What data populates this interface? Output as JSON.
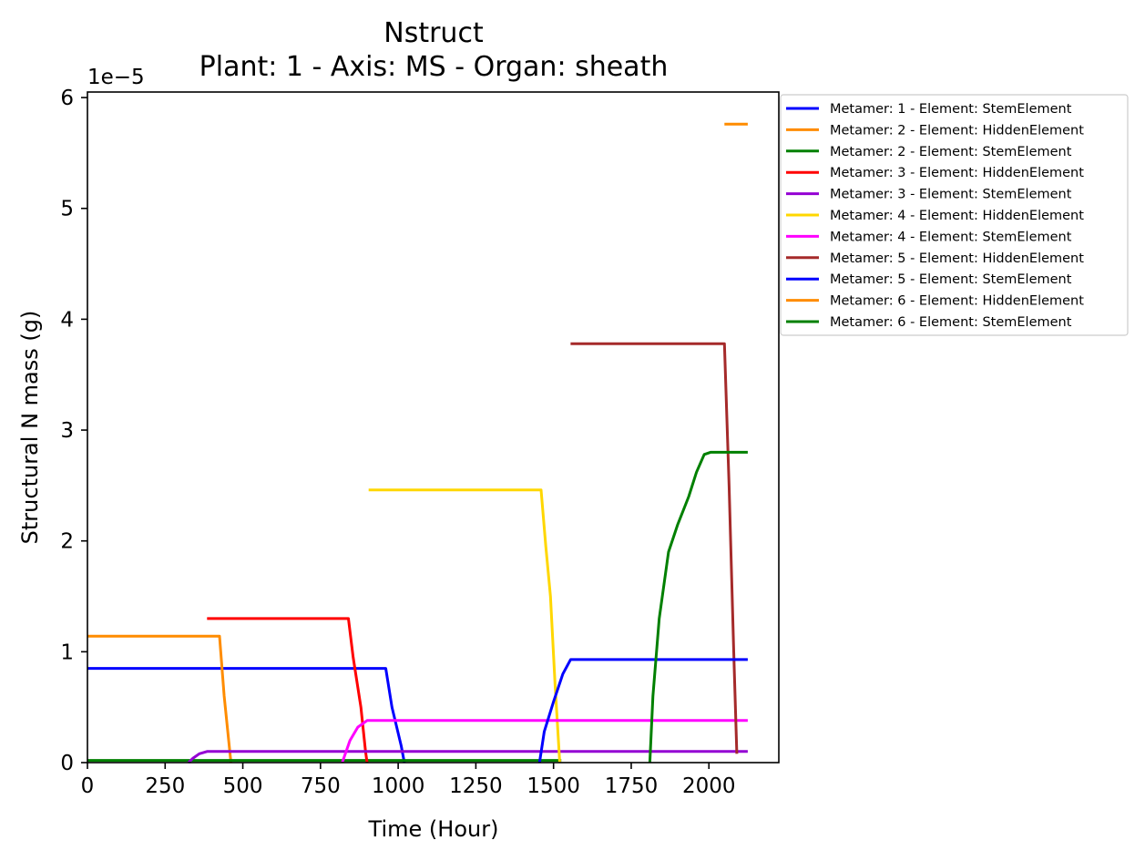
{
  "chart_data": {
    "type": "line",
    "title": "Nstruct",
    "subtitle": "Plant: 1 - Axis: MS - Organ: sheath",
    "xlabel": "Time (Hour)",
    "ylabel": "Structural N mass (g)",
    "y_offset_label": "1e−5",
    "xlim": [
      0,
      2225
    ],
    "ylim": [
      0,
      6.05
    ],
    "x_ticks": [
      0,
      250,
      500,
      750,
      1000,
      1250,
      1500,
      1750,
      2000
    ],
    "y_ticks": [
      0,
      1,
      2,
      3,
      4,
      5,
      6
    ],
    "grid": false,
    "legend_position": "outside top-right",
    "series": [
      {
        "name": "Metamer: 1 - Element: StemElement",
        "color": "#0000ff",
        "x": [
          0,
          960,
          980,
          1010,
          1020
        ],
        "y": [
          0.85,
          0.85,
          0.5,
          0.15,
          0
        ]
      },
      {
        "name": "Metamer: 2 - Element: HiddenElement",
        "color": "#ff8c00",
        "x": [
          0,
          425,
          440,
          460,
          462
        ],
        "y": [
          1.14,
          1.14,
          0.6,
          0.05,
          0
        ]
      },
      {
        "name": "Metamer: 2 - Element: StemElement",
        "color": "#008000",
        "x": [
          0,
          1525
        ],
        "y": [
          0.02,
          0.02
        ]
      },
      {
        "name": "Metamer: 3 - Element: HiddenElement",
        "color": "#ff0000",
        "x": [
          385,
          840,
          855,
          880,
          895,
          900
        ],
        "y": [
          1.3,
          1.3,
          0.95,
          0.5,
          0.1,
          0
        ]
      },
      {
        "name": "Metamer: 3 - Element: StemElement",
        "color": "#9400d3",
        "x": [
          325,
          340,
          360,
          385,
          2125
        ],
        "y": [
          0,
          0.04,
          0.08,
          0.1,
          0.1
        ]
      },
      {
        "name": "Metamer: 4 - Element: HiddenElement",
        "color": "#ffd700",
        "x": [
          905,
          1460,
          1475,
          1490,
          1505,
          1520
        ],
        "y": [
          2.46,
          2.46,
          1.95,
          1.5,
          0.7,
          0
        ]
      },
      {
        "name": "Metamer: 4 - Element: StemElement",
        "color": "#ff00ff",
        "x": [
          820,
          845,
          870,
          900,
          2125
        ],
        "y": [
          0,
          0.2,
          0.32,
          0.38,
          0.38
        ]
      },
      {
        "name": "Metamer: 5 - Element: HiddenElement",
        "color": "#a52a2a",
        "x": [
          1555,
          2050,
          2065,
          2080,
          2090
        ],
        "y": [
          3.78,
          3.78,
          2.5,
          1.0,
          0.08
        ]
      },
      {
        "name": "Metamer: 5 - Element: StemElement",
        "color": "#0000ff",
        "x": [
          1455,
          1470,
          1500,
          1530,
          1555,
          2125
        ],
        "y": [
          0,
          0.28,
          0.55,
          0.8,
          0.93,
          0.93
        ]
      },
      {
        "name": "Metamer: 6 - Element: HiddenElement",
        "color": "#ff8c00",
        "x": [
          2050,
          2125
        ],
        "y": [
          5.76,
          5.76
        ]
      },
      {
        "name": "Metamer: 6 - Element: StemElement",
        "color": "#008000",
        "x": [
          1810,
          1820,
          1840,
          1870,
          1900,
          1935,
          1960,
          1985,
          2005,
          2125
        ],
        "y": [
          0,
          0.6,
          1.3,
          1.9,
          2.15,
          2.4,
          2.62,
          2.78,
          2.8,
          2.8
        ]
      }
    ]
  }
}
